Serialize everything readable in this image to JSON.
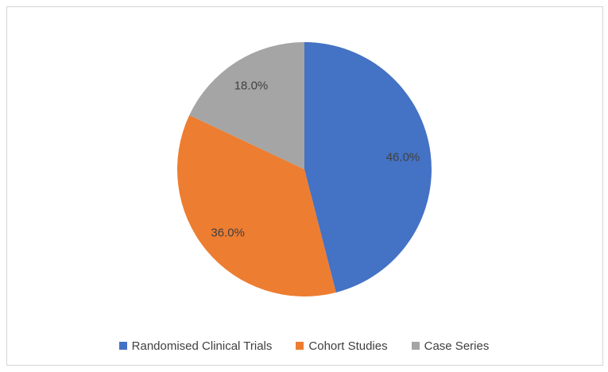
{
  "chart_data": {
    "type": "pie",
    "categories": [
      "Randomised Clinical Trials",
      "Cohort Studies",
      "Case Series"
    ],
    "values": [
      46.0,
      36.0,
      18.0
    ],
    "labels": [
      "46.0%",
      "36.0%",
      "18.0%"
    ],
    "colors": [
      "#4472C4",
      "#ED7D31",
      "#A5A5A5"
    ],
    "label_color": "#404040",
    "start_angle_deg": 0,
    "direction": "clockwise",
    "legend_position": "bottom",
    "title": ""
  },
  "legend": {
    "items": [
      {
        "label": "Randomised Clinical Trials",
        "color": "#4472C4"
      },
      {
        "label": "Cohort Studies",
        "color": "#ED7D31"
      },
      {
        "label": "Case Series",
        "color": "#A5A5A5"
      }
    ]
  }
}
